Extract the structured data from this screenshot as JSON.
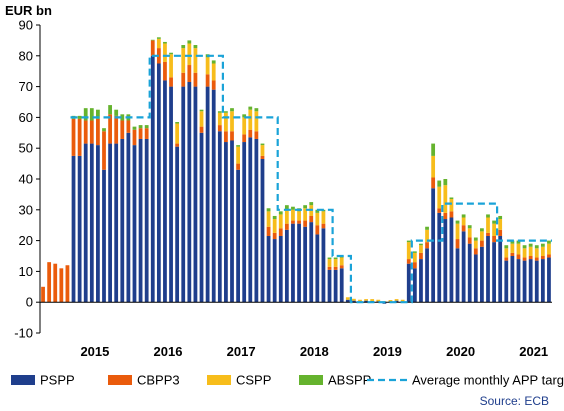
{
  "chart_data": {
    "type": "bar",
    "stacked": true,
    "unit_label": "EUR bn",
    "source": "Source: ECB",
    "ylim": [
      -10,
      90
    ],
    "yticks": [
      -10,
      0,
      10,
      20,
      30,
      40,
      50,
      60,
      70,
      80,
      90
    ],
    "grid": false,
    "legend_position": "bottom",
    "year_labels": [
      "2015",
      "2016",
      "2017",
      "2018",
      "2019",
      "2020",
      "2021"
    ],
    "x_start": "2014-10",
    "series": [
      {
        "name": "PSPP",
        "color": "#1f3e8c",
        "values": [
          0,
          0,
          0,
          0,
          0,
          47.5,
          47.5,
          51.5,
          51.5,
          51,
          43,
          51.5,
          51.5,
          53,
          55,
          51,
          53,
          53,
          80,
          77.5,
          72,
          70,
          50.5,
          70,
          71.5,
          70,
          55,
          70,
          69,
          55.5,
          52,
          52.5,
          43,
          52,
          53.5,
          53,
          46.5,
          21.5,
          20.5,
          21.5,
          23.5,
          25.5,
          25.5,
          24.5,
          26,
          22,
          24,
          10.5,
          10.5,
          11,
          0.8,
          0.5,
          0.3,
          0.5,
          0.4,
          0.3,
          -0.5,
          0.2,
          0.5,
          0,
          12.5,
          11,
          14,
          17.5,
          37,
          29,
          27,
          27.5,
          17.5,
          23,
          19,
          15.5,
          18,
          21.5,
          19.5,
          21.5,
          13.5,
          15,
          14,
          13.5,
          14,
          13.5,
          14,
          14.5
        ]
      },
      {
        "name": "CBPP3",
        "color": "#ea5b0c",
        "values": [
          5,
          13,
          12.5,
          11,
          12,
          12,
          12,
          7.5,
          7.5,
          8.5,
          12.5,
          9.5,
          9,
          6,
          4,
          5,
          3.5,
          3.5,
          5,
          5,
          6,
          3,
          1,
          4.5,
          5.5,
          4.5,
          2,
          4,
          3,
          2,
          3.5,
          3,
          2,
          2.5,
          2.5,
          2.5,
          1,
          3,
          2,
          2.5,
          2,
          1,
          1,
          2,
          2,
          3,
          1.5,
          1,
          1,
          1,
          0,
          0,
          0,
          0,
          0,
          0,
          0,
          0,
          0,
          0,
          1.5,
          2,
          2,
          2,
          3.5,
          1.5,
          2,
          2,
          3,
          2,
          2,
          2,
          2,
          1,
          2,
          2,
          1,
          1,
          1.5,
          1,
          1,
          1,
          1,
          1
        ]
      },
      {
        "name": "CSPP",
        "color": "#f7bd1b",
        "values": [
          0,
          0,
          0,
          0,
          0,
          0,
          0,
          0,
          0,
          0,
          0,
          0,
          0,
          0,
          0,
          0,
          0,
          0,
          0,
          3,
          6,
          7.5,
          6.5,
          8,
          7,
          8,
          5,
          5.5,
          5.5,
          4,
          6,
          6.5,
          5.5,
          5.5,
          6.5,
          6.5,
          3.5,
          5,
          4.5,
          4.5,
          4.5,
          3.5,
          3,
          4,
          3.5,
          4,
          4,
          2.5,
          2.5,
          2.5,
          0.8,
          0.6,
          0.5,
          0.5,
          0.6,
          0.5,
          0.3,
          0.5,
          0.5,
          0.8,
          5.5,
          3,
          2.5,
          4,
          7,
          7,
          9,
          4,
          5,
          2.5,
          3,
          2.5,
          3,
          5,
          4,
          3.5,
          3,
          3,
          3.5,
          3,
          3,
          3,
          3,
          3.5
        ]
      },
      {
        "name": "ABSPP",
        "color": "#65b32e",
        "values": [
          0,
          0,
          0,
          0,
          0,
          1,
          1,
          4,
          4,
          3,
          1,
          3,
          2,
          2,
          2,
          1,
          1,
          1,
          0.2,
          0.5,
          0.5,
          0.5,
          0.5,
          1,
          1,
          1,
          0.5,
          1,
          1,
          0.5,
          0.5,
          1,
          0.5,
          1,
          1,
          1,
          0.5,
          1,
          1,
          1,
          1.5,
          1,
          1,
          1,
          1,
          1,
          0.5,
          0.5,
          0.5,
          0.5,
          0,
          0,
          0,
          0,
          0,
          0,
          0,
          0,
          0,
          0,
          0.5,
          0.5,
          0.5,
          1,
          4,
          2,
          2,
          0.5,
          1,
          1,
          1,
          1,
          1,
          1,
          1,
          1,
          1,
          1,
          1,
          1,
          1,
          1,
          1,
          1
        ]
      },
      {
        "name": "Average monthly APP target",
        "color": "#1aa3d8",
        "line": true,
        "steps": [
          {
            "from": "2015-03",
            "to": "2016-03",
            "value": 60
          },
          {
            "from": "2016-04",
            "to": "2017-03",
            "value": 80
          },
          {
            "from": "2017-04",
            "to": "2017-12",
            "value": 60
          },
          {
            "from": "2018-01",
            "to": "2018-09",
            "value": 30
          },
          {
            "from": "2018-10",
            "to": "2018-12",
            "value": 15
          },
          {
            "from": "2019-01",
            "to": "2019-10",
            "value": 0
          },
          {
            "from": "2019-11",
            "to": "2020-03",
            "value": 20
          },
          {
            "from": "2020-04",
            "to": "2020-12",
            "value": 32
          },
          {
            "from": "2021-01",
            "to": "2021-09",
            "value": 20
          }
        ]
      }
    ]
  }
}
